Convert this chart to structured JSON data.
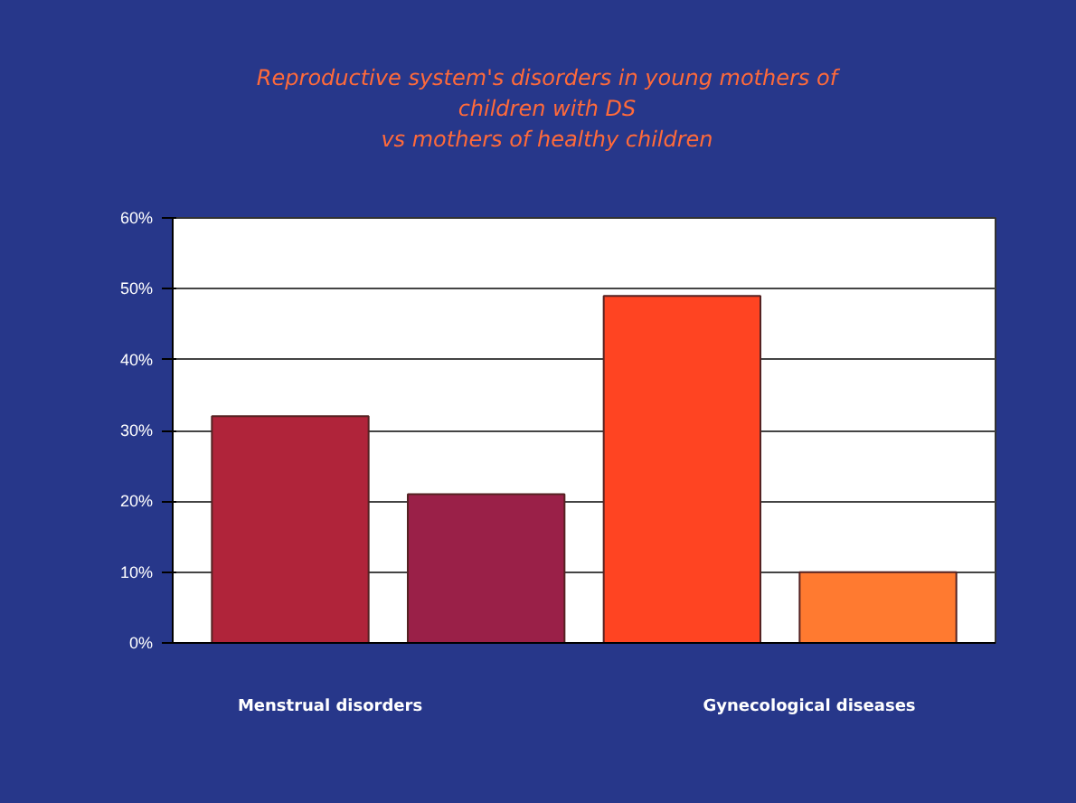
{
  "chart_data": {
    "type": "bar",
    "title": "Reproductive system's disorders  in young mothers of\nchildren with DS\nvs mothers  of healthy children",
    "categories": [
      null,
      null,
      null,
      null
    ],
    "values": [
      32,
      21,
      49,
      10
    ],
    "colors": [
      "#b0243a",
      "#9a2048",
      "#ff4422",
      "#ff7a30"
    ],
    "ylim": [
      0,
      60
    ],
    "yticks": [
      {
        "value": 0,
        "label": "0%"
      },
      {
        "value": 10,
        "label": "10%"
      },
      {
        "value": 20,
        "label": "20%"
      },
      {
        "value": 30,
        "label": "30%"
      },
      {
        "value": 40,
        "label": "40%"
      },
      {
        "value": 50,
        "label": "50%"
      },
      {
        "value": 60,
        "label": "60%"
      }
    ],
    "grid": "y",
    "annotations": [
      "Menstrual disorders",
      "Gynecological diseases"
    ]
  }
}
